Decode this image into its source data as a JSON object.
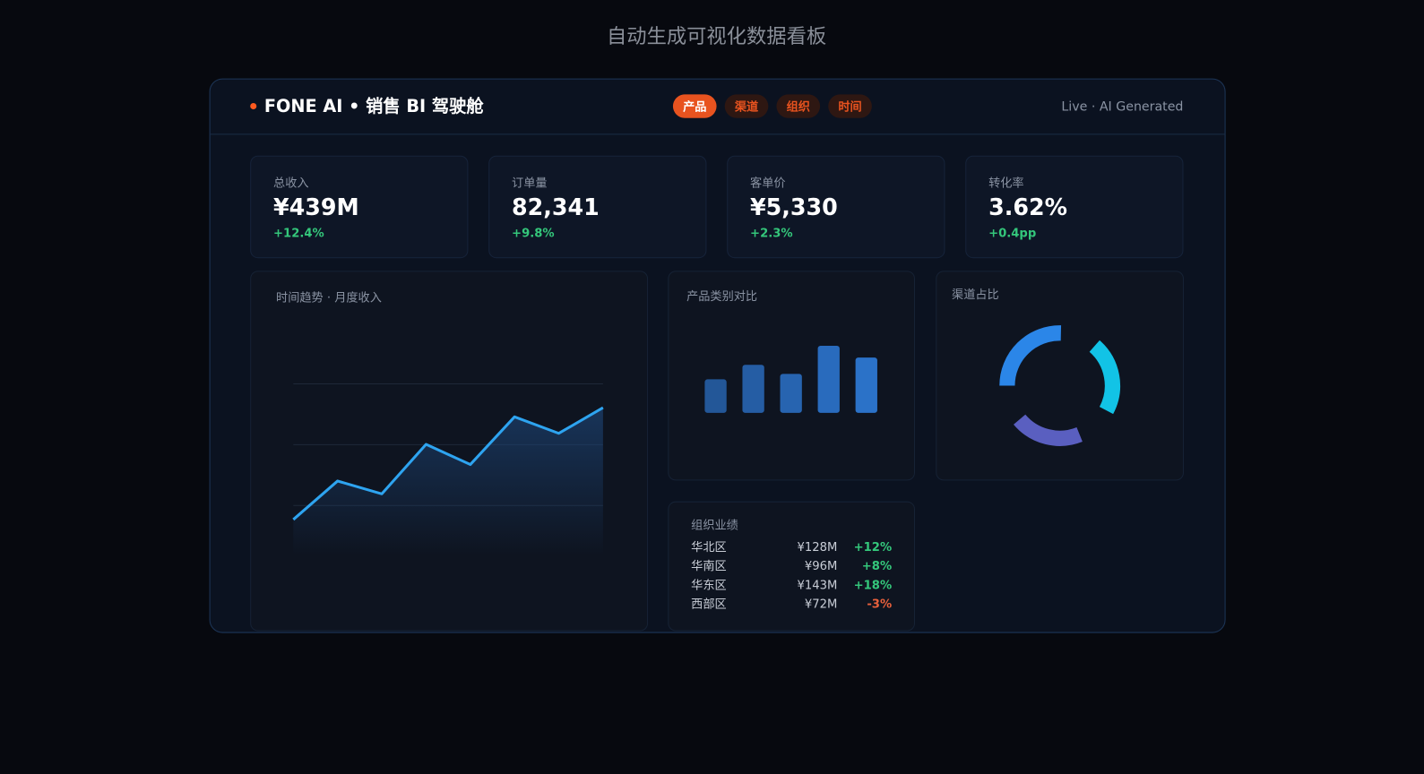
{
  "page_title": "自动生成可视化数据看板",
  "header": {
    "brand": "FONE AI • 销售 BI 驾驶舱",
    "tabs": [
      "产品",
      "渠道",
      "组织",
      "时间"
    ],
    "status": "Live · AI Generated"
  },
  "kpis": [
    {
      "label": "总收入",
      "value": "¥439M",
      "change": "+12.4%"
    },
    {
      "label": "订单量",
      "value": "82,341",
      "change": "+9.8%"
    },
    {
      "label": "客单价",
      "value": "¥5,330",
      "change": "+2.3%"
    },
    {
      "label": "转化率",
      "value": "3.62%",
      "change": "+0.4pp"
    }
  ],
  "trend": {
    "type": "line",
    "title": "时间趋势 · 月度收入",
    "values": [
      26,
      47,
      40,
      67,
      56,
      82,
      73,
      87
    ],
    "ylim": [
      0,
      100
    ],
    "color": "#2ea4f0"
  },
  "category": {
    "type": "bar",
    "title": "产品类别对比",
    "values": [
      37,
      53,
      43,
      74,
      61
    ],
    "ylim": [
      0,
      80
    ],
    "color": "#2c74cc"
  },
  "channel": {
    "type": "pie",
    "title": "渠道占比",
    "values": [
      38,
      32,
      30
    ],
    "colors": [
      "#2b86e8",
      "#12c3e6",
      "#5a5fc0"
    ]
  },
  "org": {
    "title": "组织业绩",
    "rows": [
      [
        "华北区",
        "¥128M",
        "+12%"
      ],
      [
        "华南区",
        "¥96M",
        "+8%"
      ],
      [
        "华东区",
        "¥143M",
        "+18%"
      ],
      [
        "西部区",
        "¥72M",
        "-3%"
      ]
    ]
  }
}
